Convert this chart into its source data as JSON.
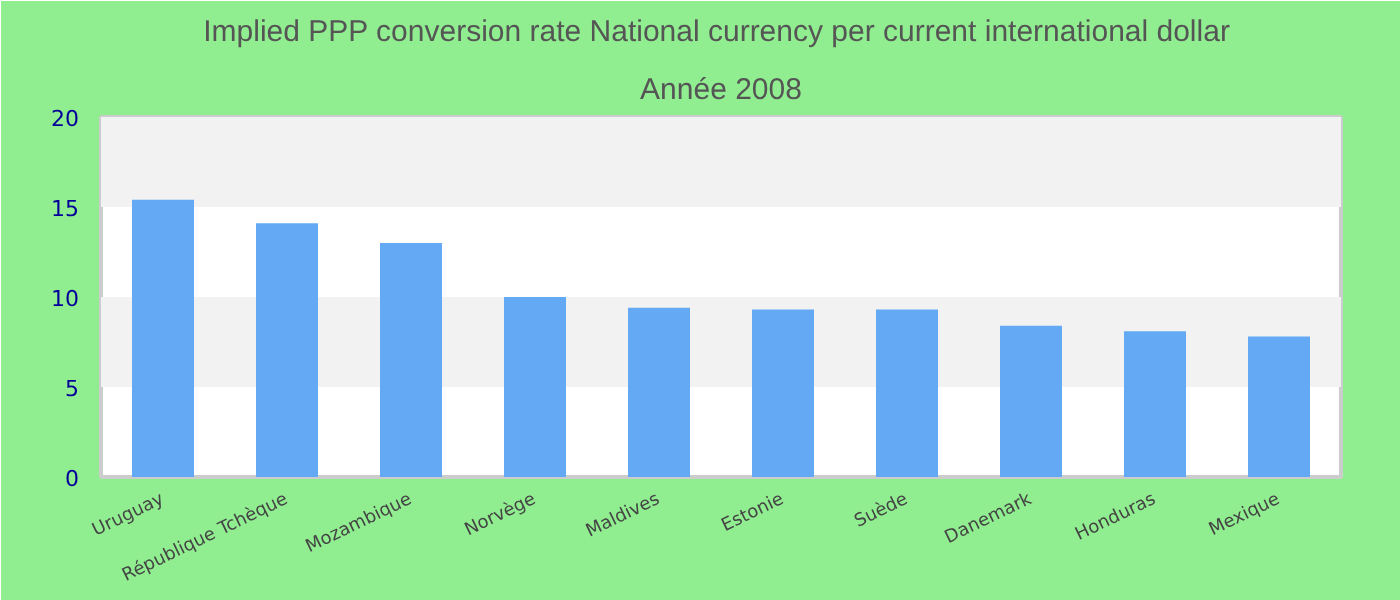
{
  "chart_data": {
    "type": "bar",
    "title": "Implied PPP conversion rate  National currency per current international dollar",
    "subtitle": "Année 2008",
    "categories": [
      "Uruguay",
      "République Tchèque",
      "Mozambique",
      "Norvège",
      "Maldives",
      "Estonie",
      "Suède",
      "Danemark",
      "Honduras",
      "Mexique"
    ],
    "values": [
      15.4,
      14.1,
      13.0,
      10.0,
      9.4,
      9.3,
      9.3,
      8.4,
      8.1,
      7.8
    ],
    "color": "#63a9f4",
    "ylim": [
      0,
      20
    ],
    "yticks": [
      0,
      5,
      10,
      15,
      20
    ],
    "bands": [
      {
        "axis": "y",
        "from": 5,
        "to": 10,
        "color": "#f2f2f2"
      },
      {
        "axis": "y",
        "from": 15,
        "to": 20,
        "color": "#f2f2f2"
      }
    ]
  }
}
